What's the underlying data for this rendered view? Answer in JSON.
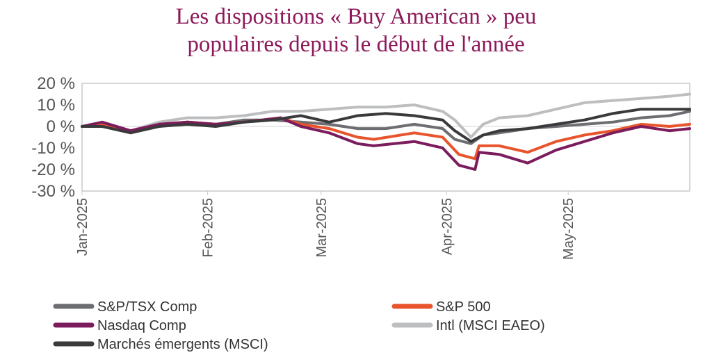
{
  "chart_data": {
    "type": "line",
    "title": "Les dispositions « Buy American » peu\npopulaires depuis le début de l'année",
    "xlabel": "",
    "ylabel": "",
    "ylim": [
      -30,
      20
    ],
    "yticks": [
      20,
      10,
      0,
      -10,
      -20,
      -30
    ],
    "ytick_labels": [
      "20 %",
      "10 %",
      "0 %",
      "-10 %",
      "-20 %",
      "-30 %"
    ],
    "xlim": [
      "2025-01-01",
      "2025-05-31"
    ],
    "xticks": [
      "2025-01-01",
      "2025-02-01",
      "2025-03-01",
      "2025-04-01",
      "2025-05-01"
    ],
    "xtick_labels": [
      "Jan-2025",
      "Feb-2025",
      "Mar-2025",
      "Apr-2025",
      "May-2025"
    ],
    "grid": false,
    "legend_position": "bottom",
    "series": [
      {
        "name": "S&P/TSX Comp",
        "color": "#6d6e71",
        "points": [
          [
            "2025-01-01",
            0
          ],
          [
            "2025-01-06",
            1
          ],
          [
            "2025-01-13",
            -2
          ],
          [
            "2025-01-20",
            0
          ],
          [
            "2025-01-27",
            2
          ],
          [
            "2025-02-03",
            1
          ],
          [
            "2025-02-10",
            3
          ],
          [
            "2025-02-17",
            3
          ],
          [
            "2025-02-24",
            2
          ],
          [
            "2025-03-03",
            1
          ],
          [
            "2025-03-10",
            -1
          ],
          [
            "2025-03-17",
            -1
          ],
          [
            "2025-03-24",
            1
          ],
          [
            "2025-03-31",
            -1
          ],
          [
            "2025-04-03",
            -6
          ],
          [
            "2025-04-07",
            -8
          ],
          [
            "2025-04-10",
            -4
          ],
          [
            "2025-04-14",
            -3
          ],
          [
            "2025-04-21",
            -1
          ],
          [
            "2025-04-28",
            0
          ],
          [
            "2025-05-05",
            1
          ],
          [
            "2025-05-12",
            2
          ],
          [
            "2025-05-19",
            4
          ],
          [
            "2025-05-26",
            5
          ],
          [
            "2025-05-31",
            7
          ]
        ]
      },
      {
        "name": "S&P 500",
        "color": "#e8552d",
        "points": [
          [
            "2025-01-01",
            0
          ],
          [
            "2025-01-06",
            1
          ],
          [
            "2025-01-13",
            -2
          ],
          [
            "2025-01-20",
            1
          ],
          [
            "2025-01-27",
            2
          ],
          [
            "2025-02-03",
            1
          ],
          [
            "2025-02-10",
            2
          ],
          [
            "2025-02-19",
            4
          ],
          [
            "2025-02-24",
            1
          ],
          [
            "2025-03-03",
            -1
          ],
          [
            "2025-03-10",
            -5
          ],
          [
            "2025-03-14",
            -6
          ],
          [
            "2025-03-24",
            -3
          ],
          [
            "2025-03-31",
            -5
          ],
          [
            "2025-04-04",
            -13
          ],
          [
            "2025-04-08",
            -15
          ],
          [
            "2025-04-09",
            -9
          ],
          [
            "2025-04-14",
            -9
          ],
          [
            "2025-04-21",
            -12
          ],
          [
            "2025-04-28",
            -7
          ],
          [
            "2025-05-05",
            -4
          ],
          [
            "2025-05-12",
            -2
          ],
          [
            "2025-05-19",
            1
          ],
          [
            "2025-05-26",
            0
          ],
          [
            "2025-05-31",
            1
          ]
        ]
      },
      {
        "name": "Nasdaq Comp",
        "color": "#7b1c5c",
        "points": [
          [
            "2025-01-01",
            0
          ],
          [
            "2025-01-06",
            2
          ],
          [
            "2025-01-13",
            -2
          ],
          [
            "2025-01-20",
            1
          ],
          [
            "2025-01-27",
            2
          ],
          [
            "2025-02-03",
            1
          ],
          [
            "2025-02-10",
            2
          ],
          [
            "2025-02-19",
            4
          ],
          [
            "2025-02-24",
            0
          ],
          [
            "2025-03-03",
            -3
          ],
          [
            "2025-03-10",
            -8
          ],
          [
            "2025-03-14",
            -9
          ],
          [
            "2025-03-24",
            -7
          ],
          [
            "2025-03-31",
            -10
          ],
          [
            "2025-04-04",
            -18
          ],
          [
            "2025-04-08",
            -20
          ],
          [
            "2025-04-09",
            -12
          ],
          [
            "2025-04-14",
            -13
          ],
          [
            "2025-04-21",
            -17
          ],
          [
            "2025-04-28",
            -11
          ],
          [
            "2025-05-05",
            -7
          ],
          [
            "2025-05-12",
            -3
          ],
          [
            "2025-05-19",
            0
          ],
          [
            "2025-05-26",
            -2
          ],
          [
            "2025-05-31",
            -1
          ]
        ]
      },
      {
        "name": "Intl (MSCI EAEO)",
        "color": "#bcbec0",
        "points": [
          [
            "2025-01-01",
            0
          ],
          [
            "2025-01-06",
            0
          ],
          [
            "2025-01-13",
            -2
          ],
          [
            "2025-01-20",
            2
          ],
          [
            "2025-01-27",
            4
          ],
          [
            "2025-02-03",
            4
          ],
          [
            "2025-02-10",
            5
          ],
          [
            "2025-02-17",
            7
          ],
          [
            "2025-02-24",
            7
          ],
          [
            "2025-03-03",
            8
          ],
          [
            "2025-03-10",
            9
          ],
          [
            "2025-03-17",
            9
          ],
          [
            "2025-03-24",
            10
          ],
          [
            "2025-03-31",
            7
          ],
          [
            "2025-04-03",
            3
          ],
          [
            "2025-04-07",
            -5
          ],
          [
            "2025-04-10",
            1
          ],
          [
            "2025-04-14",
            4
          ],
          [
            "2025-04-21",
            5
          ],
          [
            "2025-04-28",
            8
          ],
          [
            "2025-05-05",
            11
          ],
          [
            "2025-05-12",
            12
          ],
          [
            "2025-05-19",
            13
          ],
          [
            "2025-05-26",
            14
          ],
          [
            "2025-05-31",
            15
          ]
        ]
      },
      {
        "name": "Marchés émergents (MSCI)",
        "color": "#3a3a3c",
        "points": [
          [
            "2025-01-01",
            0
          ],
          [
            "2025-01-06",
            0
          ],
          [
            "2025-01-13",
            -3
          ],
          [
            "2025-01-20",
            0
          ],
          [
            "2025-01-27",
            1
          ],
          [
            "2025-02-03",
            0
          ],
          [
            "2025-02-10",
            2
          ],
          [
            "2025-02-17",
            3
          ],
          [
            "2025-02-24",
            5
          ],
          [
            "2025-03-03",
            2
          ],
          [
            "2025-03-10",
            5
          ],
          [
            "2025-03-17",
            6
          ],
          [
            "2025-03-24",
            5
          ],
          [
            "2025-03-31",
            3
          ],
          [
            "2025-04-03",
            -2
          ],
          [
            "2025-04-07",
            -7
          ],
          [
            "2025-04-10",
            -4
          ],
          [
            "2025-04-14",
            -2
          ],
          [
            "2025-04-21",
            -1
          ],
          [
            "2025-04-28",
            1
          ],
          [
            "2025-05-05",
            3
          ],
          [
            "2025-05-12",
            6
          ],
          [
            "2025-05-19",
            8
          ],
          [
            "2025-05-26",
            8
          ],
          [
            "2025-05-31",
            8
          ]
        ]
      }
    ]
  }
}
